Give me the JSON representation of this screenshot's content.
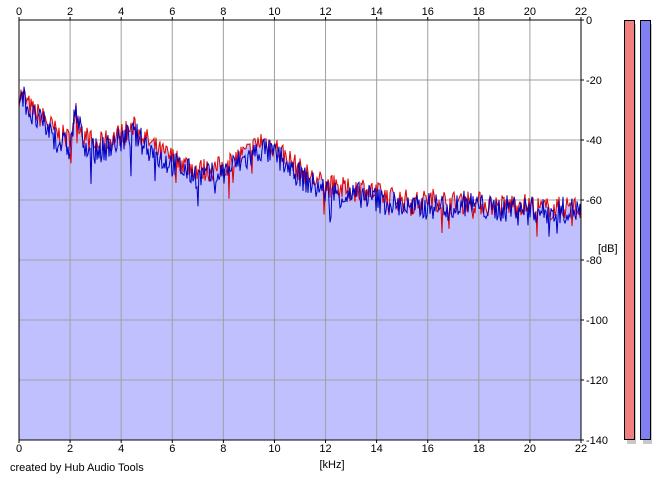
{
  "chart_data": {
    "type": "area",
    "xlabel": "[kHz]",
    "ylabel": "[dB]",
    "xlim": [
      0,
      22
    ],
    "ylim": [
      -140,
      0
    ],
    "x_ticks": [
      "0",
      "2",
      "4",
      "6",
      "8",
      "10",
      "12",
      "14",
      "16",
      "18",
      "20",
      "22"
    ],
    "y_ticks": [
      "0",
      "-20",
      "-40",
      "-60",
      "-80",
      "-100",
      "-120",
      "-140"
    ],
    "grid": true,
    "series": [
      {
        "channel": "left",
        "color": "#e00000",
        "x": [
          0.1,
          0.5,
          1,
          1.5,
          2,
          2.2,
          2.5,
          3,
          3.5,
          4,
          4.5,
          5,
          5.5,
          6,
          6.5,
          7,
          7.5,
          8,
          8.5,
          9,
          9.5,
          10,
          10.5,
          11,
          11.5,
          12,
          12.5,
          13,
          13.5,
          14,
          14.5,
          15,
          15.5,
          16,
          16.5,
          17,
          17.5,
          18,
          18.5,
          19,
          19.5,
          20,
          20.5,
          21,
          21.5,
          22
        ],
        "values": [
          -25,
          -30,
          -33,
          -38,
          -40,
          -30,
          -38,
          -42,
          -40,
          -38,
          -36,
          -40,
          -44,
          -46,
          -48,
          -50,
          -50,
          -49,
          -46,
          -44,
          -40,
          -42,
          -46,
          -50,
          -53,
          -55,
          -56,
          -57,
          -56,
          -58,
          -59,
          -60,
          -61,
          -60,
          -60,
          -61,
          -60,
          -61,
          -62,
          -62,
          -61,
          -62,
          -63,
          -63,
          -62,
          -63
        ]
      },
      {
        "channel": "right",
        "color": "#0000c0",
        "x": [
          0.1,
          0.5,
          1,
          1.5,
          2,
          2.2,
          2.5,
          3,
          3.5,
          4,
          4.5,
          5,
          5.5,
          6,
          6.5,
          7,
          7.5,
          8,
          8.5,
          9,
          9.5,
          10,
          10.5,
          11,
          11.5,
          12,
          12.5,
          13,
          13.5,
          14,
          14.5,
          15,
          15.5,
          16,
          16.5,
          17,
          17.5,
          18,
          18.5,
          19,
          19.5,
          20,
          20.5,
          21,
          21.5,
          22
        ],
        "values": [
          -24,
          -32,
          -35,
          -40,
          -43,
          -30,
          -40,
          -44,
          -42,
          -40,
          -38,
          -42,
          -46,
          -48,
          -50,
          -52,
          -52,
          -51,
          -48,
          -46,
          -43,
          -45,
          -48,
          -52,
          -55,
          -57,
          -58,
          -59,
          -58,
          -60,
          -61,
          -62,
          -63,
          -62,
          -62,
          -62,
          -61,
          -62,
          -63,
          -63,
          -62,
          -63,
          -64,
          -64,
          -63,
          -64
        ]
      }
    ],
    "fill_color": "#c0c0ff"
  },
  "meters": {
    "left_color": "#f08080",
    "right_color": "#8080f0"
  },
  "credit": "created by Hub Audio Tools"
}
